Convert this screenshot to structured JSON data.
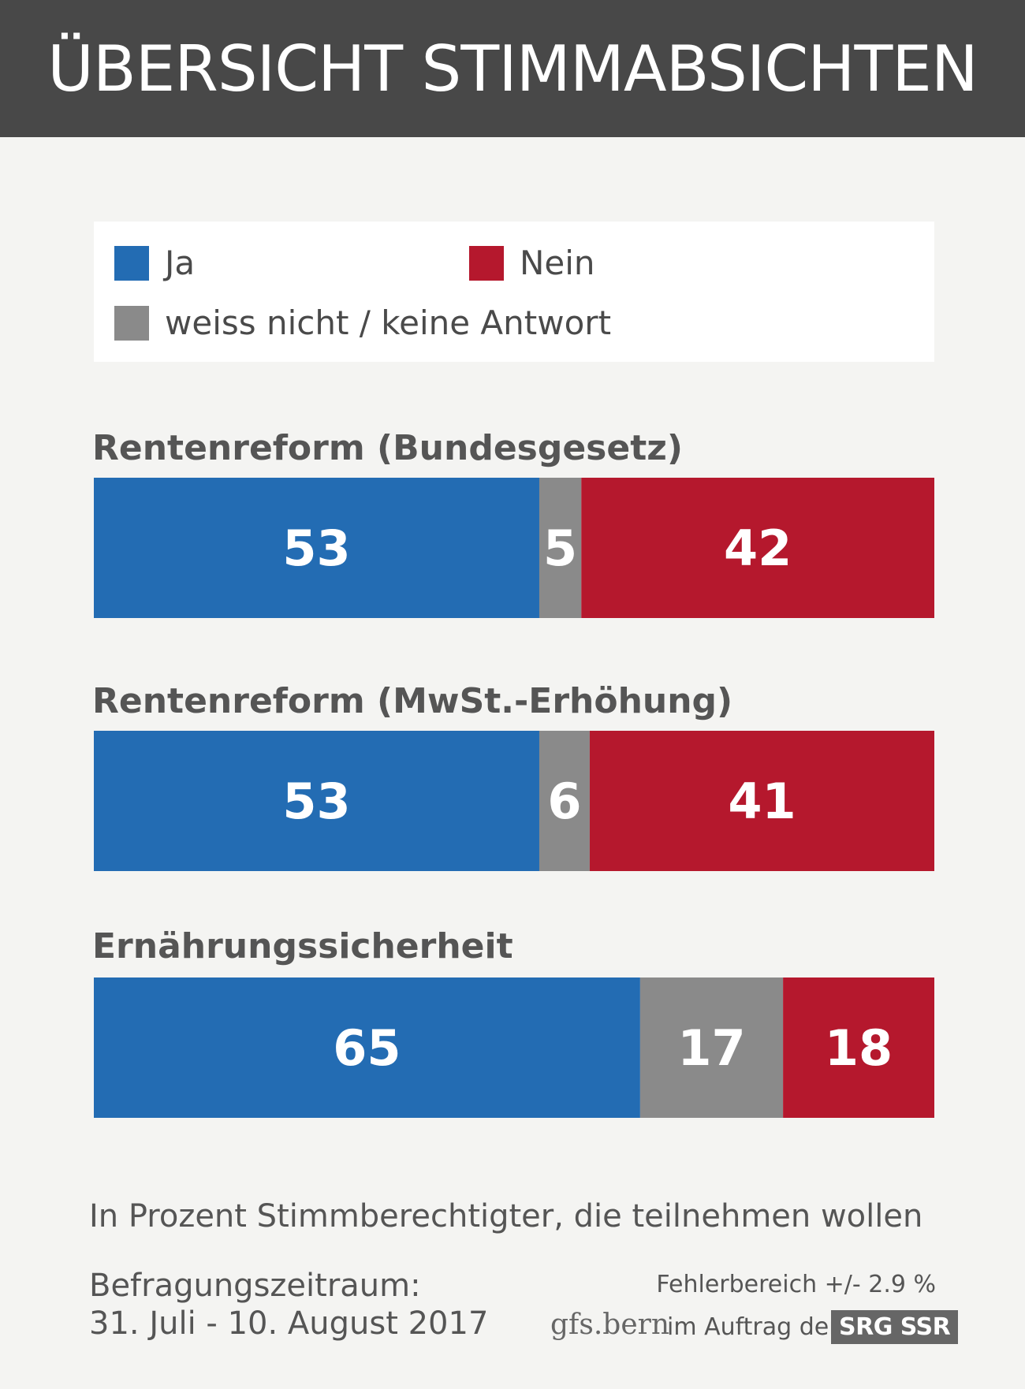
{
  "title": "ÜBERSICHT STIMMABSICHTEN",
  "colors": {
    "ja": "#236cb3",
    "nein": "#b5182d",
    "weiss_nicht": "#8a8a8a",
    "header_bg": "#484848"
  },
  "legend": {
    "ja": "Ja",
    "nein": "Nein",
    "weiss_nicht": "weiss nicht / keine Antwort"
  },
  "chart_data": {
    "type": "bar",
    "orientation": "horizontal-stacked",
    "unit": "percent",
    "series_order": [
      "ja",
      "weiss_nicht",
      "nein"
    ],
    "groups": [
      {
        "label": "Rentenreform (Bundesgesetz)",
        "ja": 53,
        "weiss_nicht": 5,
        "nein": 42
      },
      {
        "label": "Rentenreform (MwSt.-Erhöhung)",
        "ja": 53,
        "weiss_nicht": 6,
        "nein": 41
      },
      {
        "label": "Ernährungssicherheit",
        "ja": 65,
        "weiss_nicht": 17,
        "nein": 18
      }
    ]
  },
  "footer": {
    "note": "In Prozent Stimmberechtigter, die teilnehmen wollen",
    "period_label": "Befragungszeitraum:",
    "period": "31. Juli - 10. August 2017",
    "error": "Fehlerbereich +/- 2.9 %",
    "gfs": "gfs.bern",
    "auftrag": "im Auftrag der",
    "srg": "SRG SSR"
  }
}
